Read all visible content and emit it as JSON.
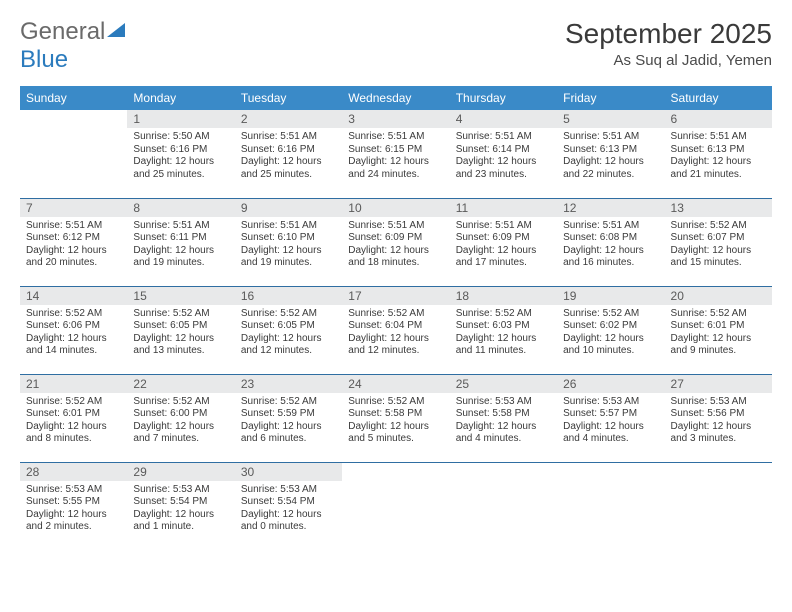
{
  "brand": {
    "name_a": "General",
    "name_b": "Blue"
  },
  "title": "September 2025",
  "location": "As Suq al Jadid, Yemen",
  "colors": {
    "header_bg": "#3a8ac8",
    "header_text": "#ffffff",
    "daynum_bg": "#e8e9ea",
    "row_border": "#2f6ea2",
    "brand_blue": "#2b7bbd",
    "brand_gray": "#6a6a6a"
  },
  "day_headers": [
    "Sunday",
    "Monday",
    "Tuesday",
    "Wednesday",
    "Thursday",
    "Friday",
    "Saturday"
  ],
  "weeks": [
    [
      {
        "empty": true
      },
      {
        "n": "1",
        "sr": "5:50 AM",
        "ss": "6:16 PM",
        "dl": "12 hours and 25 minutes."
      },
      {
        "n": "2",
        "sr": "5:51 AM",
        "ss": "6:16 PM",
        "dl": "12 hours and 25 minutes."
      },
      {
        "n": "3",
        "sr": "5:51 AM",
        "ss": "6:15 PM",
        "dl": "12 hours and 24 minutes."
      },
      {
        "n": "4",
        "sr": "5:51 AM",
        "ss": "6:14 PM",
        "dl": "12 hours and 23 minutes."
      },
      {
        "n": "5",
        "sr": "5:51 AM",
        "ss": "6:13 PM",
        "dl": "12 hours and 22 minutes."
      },
      {
        "n": "6",
        "sr": "5:51 AM",
        "ss": "6:13 PM",
        "dl": "12 hours and 21 minutes."
      }
    ],
    [
      {
        "n": "7",
        "sr": "5:51 AM",
        "ss": "6:12 PM",
        "dl": "12 hours and 20 minutes."
      },
      {
        "n": "8",
        "sr": "5:51 AM",
        "ss": "6:11 PM",
        "dl": "12 hours and 19 minutes."
      },
      {
        "n": "9",
        "sr": "5:51 AM",
        "ss": "6:10 PM",
        "dl": "12 hours and 19 minutes."
      },
      {
        "n": "10",
        "sr": "5:51 AM",
        "ss": "6:09 PM",
        "dl": "12 hours and 18 minutes."
      },
      {
        "n": "11",
        "sr": "5:51 AM",
        "ss": "6:09 PM",
        "dl": "12 hours and 17 minutes."
      },
      {
        "n": "12",
        "sr": "5:51 AM",
        "ss": "6:08 PM",
        "dl": "12 hours and 16 minutes."
      },
      {
        "n": "13",
        "sr": "5:52 AM",
        "ss": "6:07 PM",
        "dl": "12 hours and 15 minutes."
      }
    ],
    [
      {
        "n": "14",
        "sr": "5:52 AM",
        "ss": "6:06 PM",
        "dl": "12 hours and 14 minutes."
      },
      {
        "n": "15",
        "sr": "5:52 AM",
        "ss": "6:05 PM",
        "dl": "12 hours and 13 minutes."
      },
      {
        "n": "16",
        "sr": "5:52 AM",
        "ss": "6:05 PM",
        "dl": "12 hours and 12 minutes."
      },
      {
        "n": "17",
        "sr": "5:52 AM",
        "ss": "6:04 PM",
        "dl": "12 hours and 12 minutes."
      },
      {
        "n": "18",
        "sr": "5:52 AM",
        "ss": "6:03 PM",
        "dl": "12 hours and 11 minutes."
      },
      {
        "n": "19",
        "sr": "5:52 AM",
        "ss": "6:02 PM",
        "dl": "12 hours and 10 minutes."
      },
      {
        "n": "20",
        "sr": "5:52 AM",
        "ss": "6:01 PM",
        "dl": "12 hours and 9 minutes."
      }
    ],
    [
      {
        "n": "21",
        "sr": "5:52 AM",
        "ss": "6:01 PM",
        "dl": "12 hours and 8 minutes."
      },
      {
        "n": "22",
        "sr": "5:52 AM",
        "ss": "6:00 PM",
        "dl": "12 hours and 7 minutes."
      },
      {
        "n": "23",
        "sr": "5:52 AM",
        "ss": "5:59 PM",
        "dl": "12 hours and 6 minutes."
      },
      {
        "n": "24",
        "sr": "5:52 AM",
        "ss": "5:58 PM",
        "dl": "12 hours and 5 minutes."
      },
      {
        "n": "25",
        "sr": "5:53 AM",
        "ss": "5:58 PM",
        "dl": "12 hours and 4 minutes."
      },
      {
        "n": "26",
        "sr": "5:53 AM",
        "ss": "5:57 PM",
        "dl": "12 hours and 4 minutes."
      },
      {
        "n": "27",
        "sr": "5:53 AM",
        "ss": "5:56 PM",
        "dl": "12 hours and 3 minutes."
      }
    ],
    [
      {
        "n": "28",
        "sr": "5:53 AM",
        "ss": "5:55 PM",
        "dl": "12 hours and 2 minutes."
      },
      {
        "n": "29",
        "sr": "5:53 AM",
        "ss": "5:54 PM",
        "dl": "12 hours and 1 minute."
      },
      {
        "n": "30",
        "sr": "5:53 AM",
        "ss": "5:54 PM",
        "dl": "12 hours and 0 minutes."
      },
      {
        "empty": true
      },
      {
        "empty": true
      },
      {
        "empty": true
      },
      {
        "empty": true
      }
    ]
  ],
  "labels": {
    "sunrise": "Sunrise:",
    "sunset": "Sunset:",
    "daylight": "Daylight:"
  }
}
